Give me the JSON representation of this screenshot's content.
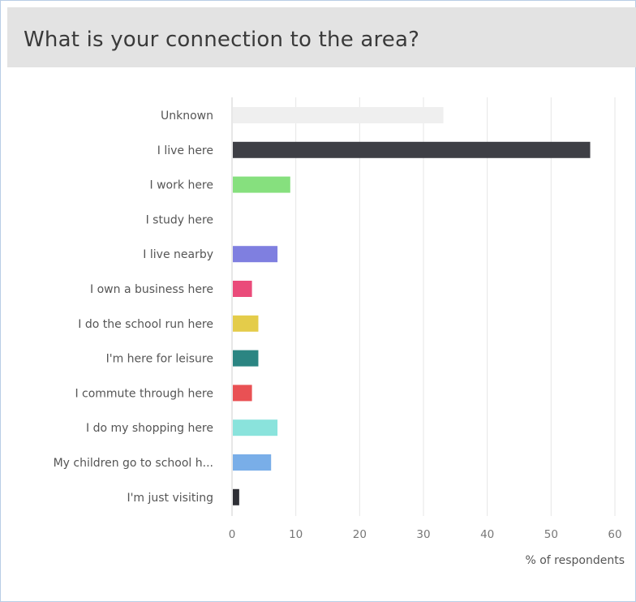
{
  "header": {
    "title": "What is your connection to the area?"
  },
  "chart_data": {
    "type": "bar",
    "orientation": "horizontal",
    "title": "What is your connection to the area?",
    "xlabel": "% of respondents",
    "ylabel": "",
    "xlim": [
      0,
      60
    ],
    "xticks": [
      0,
      10,
      20,
      30,
      40,
      50,
      60
    ],
    "grid": true,
    "legend": "none",
    "categories": [
      "Unknown",
      "I live here",
      "I work here",
      "I study here",
      "I live nearby",
      "I own a business here",
      "I do the school run here",
      "I'm here for leisure",
      "I commute through here",
      "I do my shopping here",
      "My children go to school h...",
      "I'm just visiting"
    ],
    "values": [
      33,
      56,
      9,
      0,
      7,
      3,
      4,
      4,
      3,
      7,
      6,
      1
    ],
    "colors": [
      "#efefef",
      "#3e3f45",
      "#86e07e",
      "#f4f4f4",
      "#7f7fe0",
      "#ea4b7a",
      "#e4cc4a",
      "#2b8582",
      "#e95154",
      "#8ae3dc",
      "#79aee8",
      "#2f3036"
    ]
  }
}
